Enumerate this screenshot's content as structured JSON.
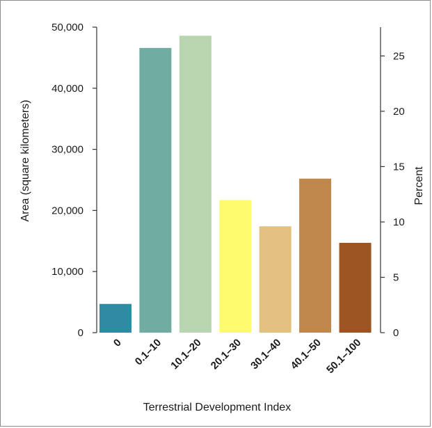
{
  "chart_data": {
    "type": "bar",
    "title": "",
    "xlabel": "Terrestrial Development Index",
    "ylabel": "Area (square kilometers)",
    "y2label": "Percent",
    "categories": [
      "0",
      "0.1–10",
      "10.1–20",
      "20.1–30",
      "30.1–40",
      "40.1–50",
      "50.1–100"
    ],
    "values": [
      4700,
      46600,
      48600,
      21700,
      17400,
      25200,
      14700
    ],
    "colors": [
      "#2e8ba1",
      "#70aca2",
      "#b8d5b0",
      "#fdfb6d",
      "#e2c07f",
      "#c0874c",
      "#9b5422"
    ],
    "ylim": [
      0,
      50000
    ],
    "yticks": [
      0,
      10000,
      20000,
      30000,
      40000,
      50000
    ],
    "ytick_labels": [
      "0",
      "10,000",
      "20,000",
      "30,000",
      "40,000",
      "50,000"
    ],
    "y2lim": [
      0,
      27.6
    ],
    "y2ticks": [
      0,
      5,
      10,
      15,
      20,
      25
    ],
    "y2tick_labels": [
      "0",
      "5",
      "10",
      "15",
      "20",
      "25"
    ],
    "grid": false,
    "legend": "none"
  }
}
